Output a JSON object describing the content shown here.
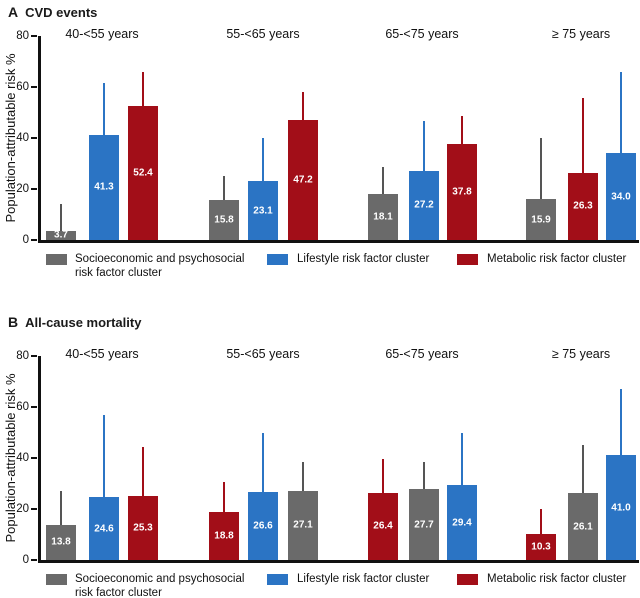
{
  "figure_type": "two-panel grouped bar chart with upper error bars",
  "chart_data": [
    {
      "type": "bar",
      "panel_letter": "A",
      "title": "CVD events",
      "ylabel": "Population-attributable risk %",
      "ylim": [
        0,
        80
      ],
      "yticks": [
        0,
        20,
        40,
        60,
        80
      ],
      "grid": false,
      "legend_position": "below",
      "series_legend": [
        {
          "key": "ses",
          "label": "Socioeconomic and psychosocial risk factor cluster",
          "color": "#6A6A6A",
          "error_color": "#555555"
        },
        {
          "key": "lifestyle",
          "label": "Lifestyle risk factor cluster",
          "color": "#2B74C4",
          "error_color": "#2B74C4"
        },
        {
          "key": "metabolic",
          "label": "Metabolic risk factor cluster",
          "color": "#A20E18",
          "error_color": "#A20E18"
        }
      ],
      "groups": [
        {
          "category": "40-<55 years",
          "bars": [
            {
              "series": "ses",
              "value": 3.7,
              "display": "3.7",
              "ci_upper": 14
            },
            {
              "series": "lifestyle",
              "value": 41.3,
              "display": "41.3",
              "ci_upper": 61.5
            },
            {
              "series": "metabolic",
              "value": 52.4,
              "display": "52.4",
              "ci_upper": 66
            }
          ]
        },
        {
          "category": "55-<65 years",
          "bars": [
            {
              "series": "ses",
              "value": 15.8,
              "display": "15.8",
              "ci_upper": 25
            },
            {
              "series": "lifestyle",
              "value": 23.1,
              "display": "23.1",
              "ci_upper": 40
            },
            {
              "series": "metabolic",
              "value": 47.2,
              "display": "47.2",
              "ci_upper": 58
            }
          ]
        },
        {
          "category": "65-<75 years",
          "bars": [
            {
              "series": "ses",
              "value": 18.1,
              "display": "18.1",
              "ci_upper": 28.5
            },
            {
              "series": "lifestyle",
              "value": 27.2,
              "display": "27.2",
              "ci_upper": 46.5
            },
            {
              "series": "metabolic",
              "value": 37.8,
              "display": "37.8",
              "ci_upper": 48.5
            }
          ]
        },
        {
          "category": "≥ 75 years",
          "bars": [
            {
              "series": "ses",
              "value": 15.9,
              "display": "15.9",
              "ci_upper": 40
            },
            {
              "series": "metabolic",
              "value": 26.3,
              "display": "26.3",
              "ci_upper": 55.5
            },
            {
              "series": "lifestyle",
              "value": 34.0,
              "display": "34.0",
              "ci_upper": 66
            }
          ]
        }
      ]
    },
    {
      "type": "bar",
      "panel_letter": "B",
      "title": "All-cause mortality",
      "ylabel": "Population-attributable risk %",
      "ylim": [
        0,
        80
      ],
      "yticks": [
        0,
        20,
        40,
        60,
        80
      ],
      "grid": false,
      "legend_position": "below",
      "series_legend": [
        {
          "key": "ses",
          "label": "Socioeconomic and psychosocial risk factor cluster",
          "color": "#6A6A6A",
          "error_color": "#555555"
        },
        {
          "key": "lifestyle",
          "label": "Lifestyle risk factor cluster",
          "color": "#2B74C4",
          "error_color": "#2B74C4"
        },
        {
          "key": "metabolic",
          "label": "Metabolic risk factor cluster",
          "color": "#A20E18",
          "error_color": "#A20E18"
        }
      ],
      "groups": [
        {
          "category": "40-<55 years",
          "bars": [
            {
              "series": "ses",
              "value": 13.8,
              "display": "13.8",
              "ci_upper": 27
            },
            {
              "series": "lifestyle",
              "value": 24.6,
              "display": "24.6",
              "ci_upper": 57
            },
            {
              "series": "metabolic",
              "value": 25.3,
              "display": "25.3",
              "ci_upper": 44.5
            }
          ]
        },
        {
          "category": "55-<65 years",
          "bars": [
            {
              "series": "metabolic",
              "value": 18.8,
              "display": "18.8",
              "ci_upper": 30.5
            },
            {
              "series": "lifestyle",
              "value": 26.6,
              "display": "26.6",
              "ci_upper": 50
            },
            {
              "series": "ses",
              "value": 27.1,
              "display": "27.1",
              "ci_upper": 38.5
            }
          ]
        },
        {
          "category": "65-<75 years",
          "bars": [
            {
              "series": "metabolic",
              "value": 26.4,
              "display": "26.4",
              "ci_upper": 39.5
            },
            {
              "series": "ses",
              "value": 27.7,
              "display": "27.7",
              "ci_upper": 38.5
            },
            {
              "series": "lifestyle",
              "value": 29.4,
              "display": "29.4",
              "ci_upper": 50
            }
          ]
        },
        {
          "category": "≥ 75 years",
          "bars": [
            {
              "series": "metabolic",
              "value": 10.3,
              "display": "10.3",
              "ci_upper": 20
            },
            {
              "series": "ses",
              "value": 26.1,
              "display": "26.1",
              "ci_upper": 45
            },
            {
              "series": "lifestyle",
              "value": 41.0,
              "display": "41.0",
              "ci_upper": 67
            }
          ]
        }
      ]
    }
  ]
}
